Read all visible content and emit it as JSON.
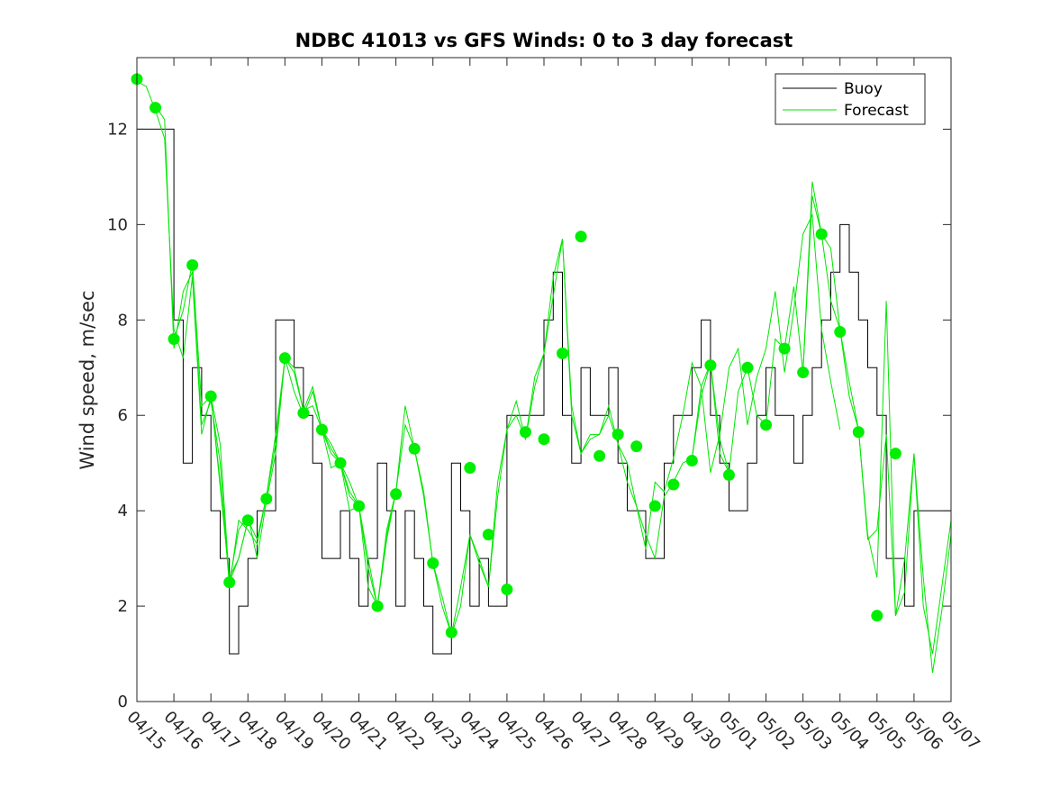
{
  "chart_data": {
    "type": "line",
    "title": "NDBC 41013 vs GFS Winds: 0 to 3 day forecast",
    "ylabel": "Wind speed, m/sec",
    "xlabel": "",
    "x_unit": "day index (0 = 04/15)",
    "xlim": [
      0,
      22
    ],
    "ylim": [
      0,
      13.5
    ],
    "yticks": [
      0,
      2,
      4,
      6,
      8,
      10,
      12
    ],
    "xtick_labels": [
      "04/15",
      "04/16",
      "04/17",
      "04/18",
      "04/19",
      "04/20",
      "04/21",
      "04/22",
      "04/23",
      "04/24",
      "04/25",
      "04/26",
      "04/27",
      "04/28",
      "04/29",
      "04/30",
      "05/01",
      "05/02",
      "05/03",
      "05/04",
      "05/05",
      "05/06",
      "05/07"
    ],
    "legend": {
      "position": "top-right",
      "entries": [
        "Buoy",
        "Forecast"
      ]
    },
    "colors": {
      "buoy": "#000000",
      "forecast": "#00e600",
      "marker": "#00ee00"
    },
    "buoy": {
      "x": [
        0,
        0.25,
        0.5,
        0.75,
        1,
        1.25,
        1.5,
        1.75,
        2,
        2.25,
        2.5,
        2.75,
        3,
        3.25,
        3.5,
        3.75,
        4,
        4.25,
        4.5,
        4.75,
        5,
        5.25,
        5.5,
        5.75,
        6,
        6.25,
        6.5,
        6.75,
        7,
        7.25,
        7.5,
        7.75,
        8,
        8.25,
        8.5,
        8.75,
        9,
        9.25,
        9.5,
        9.75,
        10,
        10.25,
        10.5,
        10.75,
        11,
        11.25,
        11.5,
        11.75,
        12,
        12.25,
        12.5,
        12.75,
        13,
        13.25,
        13.5,
        13.75,
        14,
        14.25,
        14.5,
        14.75,
        15,
        15.25,
        15.5,
        15.75,
        16,
        16.25,
        16.5,
        16.75,
        17,
        17.25,
        17.5,
        17.75,
        18,
        18.25,
        18.5,
        18.75,
        19,
        19.25,
        19.5,
        19.75,
        20,
        20.25,
        20.5,
        20.75,
        21,
        21.25,
        21.5,
        21.75,
        22
      ],
      "y": [
        12,
        12,
        12,
        12,
        8,
        5,
        7,
        6,
        4,
        3,
        1,
        2,
        3,
        4,
        4,
        8,
        8,
        7,
        6,
        5,
        3,
        3,
        4,
        3,
        2,
        3,
        5,
        4,
        2,
        4,
        3,
        2,
        1,
        1,
        5,
        4,
        2,
        3,
        2,
        2,
        6,
        6,
        6,
        6,
        8,
        9,
        6,
        5,
        7,
        6,
        6,
        7,
        5,
        4,
        4,
        3,
        3,
        5,
        6,
        6,
        7,
        8,
        6,
        5,
        4,
        4,
        5,
        6,
        7,
        6,
        6,
        5,
        6,
        7,
        8,
        9,
        10,
        9,
        8,
        7,
        6,
        3,
        3,
        2,
        4,
        4,
        4,
        4,
        4
      ]
    },
    "forecast_runs": [
      {
        "x": [
          0,
          0.25,
          0.5,
          0.75,
          1,
          1.25,
          1.5,
          1.75,
          2,
          2.25,
          2.5,
          2.75,
          3
        ],
        "y": [
          13,
          12.9,
          12.4,
          11.8,
          7.8,
          7.2,
          8.9,
          5.6,
          6.4,
          4.5,
          2.6,
          3.0,
          3.8
        ]
      },
      {
        "x": [
          0.5,
          0.75,
          1,
          1.25,
          1.5,
          1.75,
          2,
          2.25,
          2.5,
          2.75,
          3,
          3.25,
          3.5,
          3.75,
          4,
          4.25,
          4.5,
          4.75,
          5,
          5.25,
          5.5,
          5.75,
          6
        ],
        "y": [
          12.5,
          12.2,
          7.4,
          8.6,
          9.0,
          5.8,
          6.3,
          5.0,
          2.4,
          3.8,
          3.6,
          3.3,
          4.3,
          5.6,
          7.2,
          6.5,
          6.0,
          6.5,
          5.7,
          5.2,
          5.0,
          4.0,
          4.1
        ]
      },
      {
        "x": [
          1,
          1.25,
          1.5,
          1.75,
          2,
          2.25,
          2.5,
          2.75,
          3,
          3.25,
          3.5,
          3.75,
          4,
          4.25,
          4.5,
          4.75,
          5,
          5.25,
          5.5,
          5.75,
          6,
          6.25,
          6.5,
          6.75,
          7
        ],
        "y": [
          7.6,
          8.2,
          9.2,
          6.2,
          6.4,
          4.6,
          2.5,
          3.6,
          3.9,
          3.0,
          4.2,
          5.2,
          7.2,
          6.9,
          6.1,
          6.2,
          5.7,
          4.9,
          5.0,
          4.3,
          4.1,
          2.4,
          2.0,
          3.4,
          4.4
        ]
      },
      {
        "x": [
          2,
          2.25,
          2.5,
          2.75,
          3,
          3.25,
          3.5,
          3.75,
          4,
          4.25,
          4.5,
          4.75,
          5,
          5.25,
          5.5,
          5.75,
          6,
          6.25,
          6.5,
          6.75,
          7,
          7.25,
          7.5,
          7.75,
          8,
          8.25,
          8.5,
          8.75,
          9
        ],
        "y": [
          6.4,
          5.4,
          2.5,
          3.0,
          3.8,
          3.4,
          4.3,
          5.4,
          7.2,
          7.0,
          6.1,
          6.6,
          5.7,
          5.3,
          5.0,
          4.4,
          4.1,
          2.8,
          2.0,
          3.6,
          4.4,
          5.8,
          5.3,
          4.3,
          2.9,
          2.0,
          1.4,
          2.4,
          3.5
        ]
      },
      {
        "x": [
          5,
          5.25,
          5.5,
          5.75,
          6,
          6.25,
          6.5,
          6.75,
          7,
          7.25,
          7.5,
          7.75,
          8,
          8.25,
          8.5,
          8.75,
          9,
          9.25,
          9.5,
          9.75,
          10,
          10.25,
          10.5,
          10.75,
          11,
          11.25,
          11.5,
          11.75,
          12
        ],
        "y": [
          5.7,
          5.4,
          5.0,
          4.6,
          4.1,
          3.0,
          2.0,
          3.5,
          4.4,
          6.2,
          5.3,
          4.4,
          2.9,
          2.2,
          1.4,
          2.0,
          3.5,
          2.9,
          2.4,
          4.6,
          5.7,
          6.3,
          5.5,
          6.8,
          7.3,
          8.5,
          9.7,
          6.2,
          5.2
        ]
      },
      {
        "x": [
          9,
          9.25,
          9.5,
          9.75,
          10,
          10.25,
          10.5,
          10.75,
          11,
          11.25,
          11.5,
          11.75,
          12,
          12.25,
          12.5,
          12.75,
          13,
          13.25,
          13.5,
          13.75,
          14,
          14.25,
          14.5,
          14.75,
          15,
          15.25,
          15.5,
          15.75,
          16
        ],
        "y": [
          3.5,
          3.0,
          2.4,
          4.3,
          5.7,
          6.0,
          5.5,
          6.6,
          7.3,
          8.9,
          9.7,
          6.0,
          5.2,
          5.5,
          5.6,
          6.0,
          5.4,
          5.0,
          4.1,
          3.5,
          3.0,
          4.3,
          4.6,
          5.0,
          5.1,
          6.6,
          7.1,
          5.5,
          4.8
        ]
      },
      {
        "x": [
          12,
          12.25,
          12.5,
          12.75,
          13,
          13.25,
          13.5,
          13.75,
          14,
          14.25,
          14.5,
          14.75,
          15,
          15.25,
          15.5,
          15.75,
          16,
          16.25,
          16.5,
          16.75,
          17,
          17.25,
          17.5,
          17.75,
          18,
          18.25,
          18.5,
          18.75,
          19
        ],
        "y": [
          5.2,
          5.6,
          5.6,
          6.2,
          5.4,
          4.6,
          4.1,
          3.2,
          4.6,
          4.4,
          5.1,
          6.0,
          7.1,
          6.6,
          4.8,
          5.6,
          7.0,
          7.4,
          5.8,
          6.8,
          7.4,
          8.6,
          6.9,
          8.2,
          9.8,
          10.2,
          7.8,
          6.7,
          5.7
        ]
      },
      {
        "x": [
          15,
          15.25,
          15.5,
          15.75,
          16,
          16.25,
          16.5,
          16.75,
          17,
          17.25,
          17.5,
          17.75,
          18,
          18.25,
          18.5,
          18.75,
          19,
          19.25,
          19.5,
          19.75,
          20,
          20.25,
          20.5,
          20.75,
          21,
          21.25,
          21.5,
          21.75,
          22
        ],
        "y": [
          5.1,
          6.4,
          7.1,
          5.2,
          4.8,
          6.5,
          7.0,
          6.0,
          5.8,
          7.6,
          7.4,
          8.7,
          6.9,
          10.6,
          9.8,
          8.4,
          7.8,
          6.7,
          5.7,
          3.4,
          3.6,
          5.6,
          1.8,
          2.3,
          5.2,
          2.0,
          1.0,
          2.4,
          3.8
        ]
      },
      {
        "x": [
          18,
          18.25,
          18.5,
          18.75,
          19,
          19.25,
          19.5,
          19.75,
          20,
          20.25,
          20.5,
          20.75,
          21,
          21.25,
          21.5,
          21.75,
          22
        ],
        "y": [
          6.9,
          10.9,
          9.8,
          9.5,
          7.8,
          6.4,
          5.7,
          3.5,
          2.6,
          8.4,
          1.8,
          3.0,
          5.2,
          2.6,
          0.6,
          1.9,
          3.5
        ]
      }
    ],
    "markers": {
      "x": [
        0,
        0.5,
        1,
        1.5,
        2,
        2.5,
        3,
        3.5,
        4,
        4.5,
        5,
        5.5,
        6,
        6.5,
        7,
        7.5,
        8,
        8.5,
        9,
        9.5,
        10,
        10.5,
        11,
        11.5,
        12,
        12.5,
        13,
        13.5,
        14,
        14.5,
        15,
        15.5,
        16,
        16.5,
        17,
        17.5,
        18,
        18.5,
        19,
        19.5,
        20,
        20.5,
        21
      ],
      "y": [
        13.05,
        12.45,
        7.6,
        9.15,
        6.4,
        2.5,
        3.8,
        4.25,
        7.2,
        6.05,
        5.7,
        5.0,
        4.1,
        2.0,
        4.35,
        5.3,
        2.9,
        1.45,
        4.9,
        3.5,
        2.35,
        5.65,
        5.5,
        7.3,
        9.75,
        5.15,
        5.6,
        5.35,
        4.1,
        4.55,
        5.05,
        7.05,
        4.75,
        7.0,
        5.8,
        7.4,
        6.9,
        9.8,
        7.75,
        5.65,
        1.8,
        5.2,
        null
      ]
    }
  }
}
